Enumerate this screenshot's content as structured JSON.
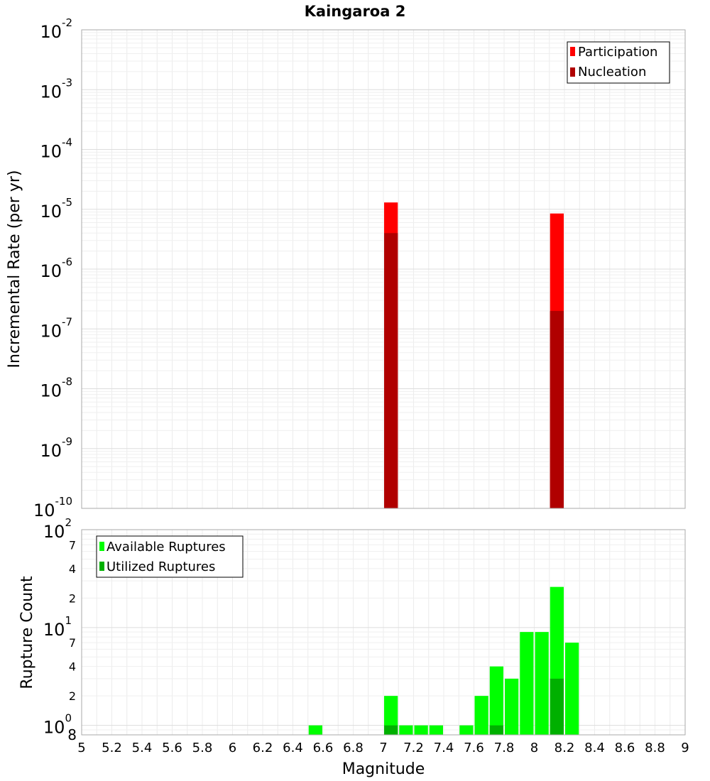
{
  "chart_data": [
    {
      "type": "bar",
      "title": "Kaingaroa 2",
      "xlabel": "",
      "ylabel": "Incremental Rate (per yr)",
      "yscale": "log",
      "ylim": [
        1e-10,
        0.01
      ],
      "xlim": [
        5,
        9
      ],
      "bar_width": 0.1,
      "y_tick_labels": [
        {
          "exp": -2,
          "base": "10",
          "sup": "-2"
        },
        {
          "exp": -3,
          "base": "10",
          "sup": "-3"
        },
        {
          "exp": -4,
          "base": "10",
          "sup": "-4"
        },
        {
          "exp": -5,
          "base": "10",
          "sup": "-5"
        },
        {
          "exp": -6,
          "base": "10",
          "sup": "-6"
        },
        {
          "exp": -7,
          "base": "10",
          "sup": "-7"
        },
        {
          "exp": -8,
          "base": "10",
          "sup": "-8"
        },
        {
          "exp": -9,
          "base": "10",
          "sup": "-9"
        },
        {
          "exp": -10,
          "base": "10",
          "sup": "-10"
        }
      ],
      "legend": {
        "position": "top-right"
      },
      "series": [
        {
          "name": "Participation",
          "color": "#ff0000",
          "points": [
            {
              "x": 7.05,
              "y": 1.3e-05
            },
            {
              "x": 8.15,
              "y": 8.5e-06
            }
          ]
        },
        {
          "name": "Nucleation",
          "color": "#b00000",
          "points": [
            {
              "x": 7.05,
              "y": 4e-06
            },
            {
              "x": 8.15,
              "y": 2e-07
            }
          ]
        }
      ]
    },
    {
      "type": "bar",
      "title": "",
      "xlabel": "Magnitude",
      "ylabel": "Rupture Count",
      "yscale": "log",
      "ylim": [
        0.8,
        100
      ],
      "xlim": [
        5,
        9
      ],
      "bar_width": 0.1,
      "x_ticks": [
        "5",
        "5.2",
        "5.4",
        "5.6",
        "5.8",
        "6",
        "6.2",
        "6.4",
        "6.6",
        "6.8",
        "7",
        "7.2",
        "7.4",
        "7.6",
        "7.8",
        "8",
        "8.2",
        "8.4",
        "8.6",
        "8.8",
        "9"
      ],
      "y_major_labels": [
        {
          "value": 100,
          "base": "10",
          "sup": "2"
        },
        {
          "value": 10,
          "base": "10",
          "sup": "1"
        },
        {
          "value": 1,
          "base": "10",
          "sup": "0"
        }
      ],
      "y_minor_labels": [
        {
          "value": 70,
          "label": "7"
        },
        {
          "value": 40,
          "label": "4"
        },
        {
          "value": 20,
          "label": "2"
        },
        {
          "value": 7,
          "label": "7"
        },
        {
          "value": 4,
          "label": "4"
        },
        {
          "value": 2,
          "label": "2"
        },
        {
          "value": 0.8,
          "label": "8"
        }
      ],
      "legend": {
        "position": "top-left"
      },
      "series": [
        {
          "name": "Available Ruptures",
          "color": "#00ff00",
          "points": [
            {
              "x": 6.55,
              "y": 1
            },
            {
              "x": 7.05,
              "y": 2
            },
            {
              "x": 7.15,
              "y": 1
            },
            {
              "x": 7.25,
              "y": 1
            },
            {
              "x": 7.35,
              "y": 1
            },
            {
              "x": 7.55,
              "y": 1
            },
            {
              "x": 7.65,
              "y": 2
            },
            {
              "x": 7.75,
              "y": 4
            },
            {
              "x": 7.85,
              "y": 3
            },
            {
              "x": 7.95,
              "y": 9
            },
            {
              "x": 8.05,
              "y": 9
            },
            {
              "x": 8.15,
              "y": 26
            },
            {
              "x": 8.25,
              "y": 7
            }
          ]
        },
        {
          "name": "Utilized Ruptures",
          "color": "#00b000",
          "points": [
            {
              "x": 7.05,
              "y": 1
            },
            {
              "x": 7.75,
              "y": 1
            },
            {
              "x": 8.15,
              "y": 3
            }
          ]
        }
      ]
    }
  ]
}
